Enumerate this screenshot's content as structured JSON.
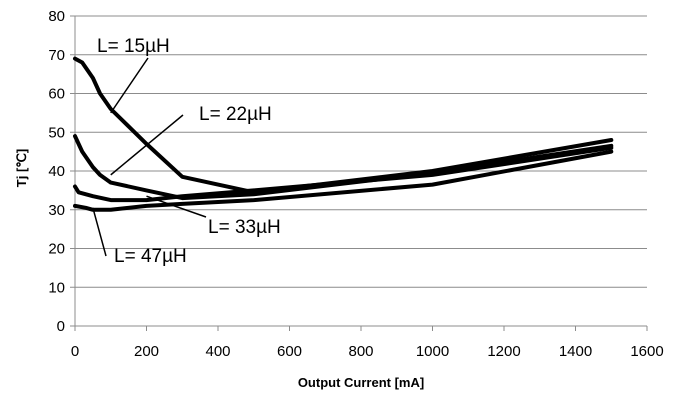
{
  "chart_data": {
    "type": "line",
    "xlabel": "Output Current [mA]",
    "ylabel": "Tj [℃]",
    "xlim": [
      0,
      1600
    ],
    "ylim": [
      0,
      80
    ],
    "x_ticks": [
      "0",
      "200",
      "400",
      "600",
      "800",
      "1000",
      "1200",
      "1400",
      "1600"
    ],
    "y_ticks": [
      "0",
      "10",
      "20",
      "30",
      "40",
      "50",
      "60",
      "70",
      "80"
    ],
    "grid": "horizontal",
    "legend": "none",
    "line_color": "#000000",
    "series": [
      {
        "name": "L= 15µH",
        "points": [
          [
            0,
            69
          ],
          [
            20,
            68
          ],
          [
            50,
            64
          ],
          [
            70,
            60
          ],
          [
            100,
            56
          ],
          [
            200,
            47
          ],
          [
            300,
            38.5
          ],
          [
            400,
            36.5
          ],
          [
            500,
            34.5
          ],
          [
            1000,
            40
          ],
          [
            1500,
            48
          ]
        ]
      },
      {
        "name": "L= 22µH",
        "points": [
          [
            0,
            49
          ],
          [
            20,
            45
          ],
          [
            50,
            41
          ],
          [
            70,
            39
          ],
          [
            100,
            37
          ],
          [
            200,
            35
          ],
          [
            300,
            33
          ],
          [
            500,
            34
          ],
          [
            1000,
            39.5
          ],
          [
            1500,
            46.5
          ]
        ]
      },
      {
        "name": "L= 33µH",
        "points": [
          [
            0,
            36
          ],
          [
            10,
            34.5
          ],
          [
            50,
            33.5
          ],
          [
            100,
            32.5
          ],
          [
            200,
            32.5
          ],
          [
            300,
            33.5
          ],
          [
            500,
            35
          ],
          [
            1000,
            39
          ],
          [
            1500,
            46
          ]
        ]
      },
      {
        "name": "L= 47µH",
        "points": [
          [
            0,
            31
          ],
          [
            30,
            30.5
          ],
          [
            50,
            30
          ],
          [
            100,
            30
          ],
          [
            200,
            31
          ],
          [
            300,
            31.5
          ],
          [
            500,
            32.5
          ],
          [
            1000,
            36.5
          ],
          [
            1500,
            45
          ]
        ]
      }
    ],
    "annotations": [
      {
        "text": "L= 15µH",
        "target": [
          100,
          55
        ]
      },
      {
        "text": "L= 22µH",
        "target": [
          100,
          39
        ]
      },
      {
        "text": "L= 33µH",
        "target": [
          200,
          33.5
        ]
      },
      {
        "text": "L= 47µH",
        "target": [
          50,
          30.5
        ]
      }
    ]
  }
}
